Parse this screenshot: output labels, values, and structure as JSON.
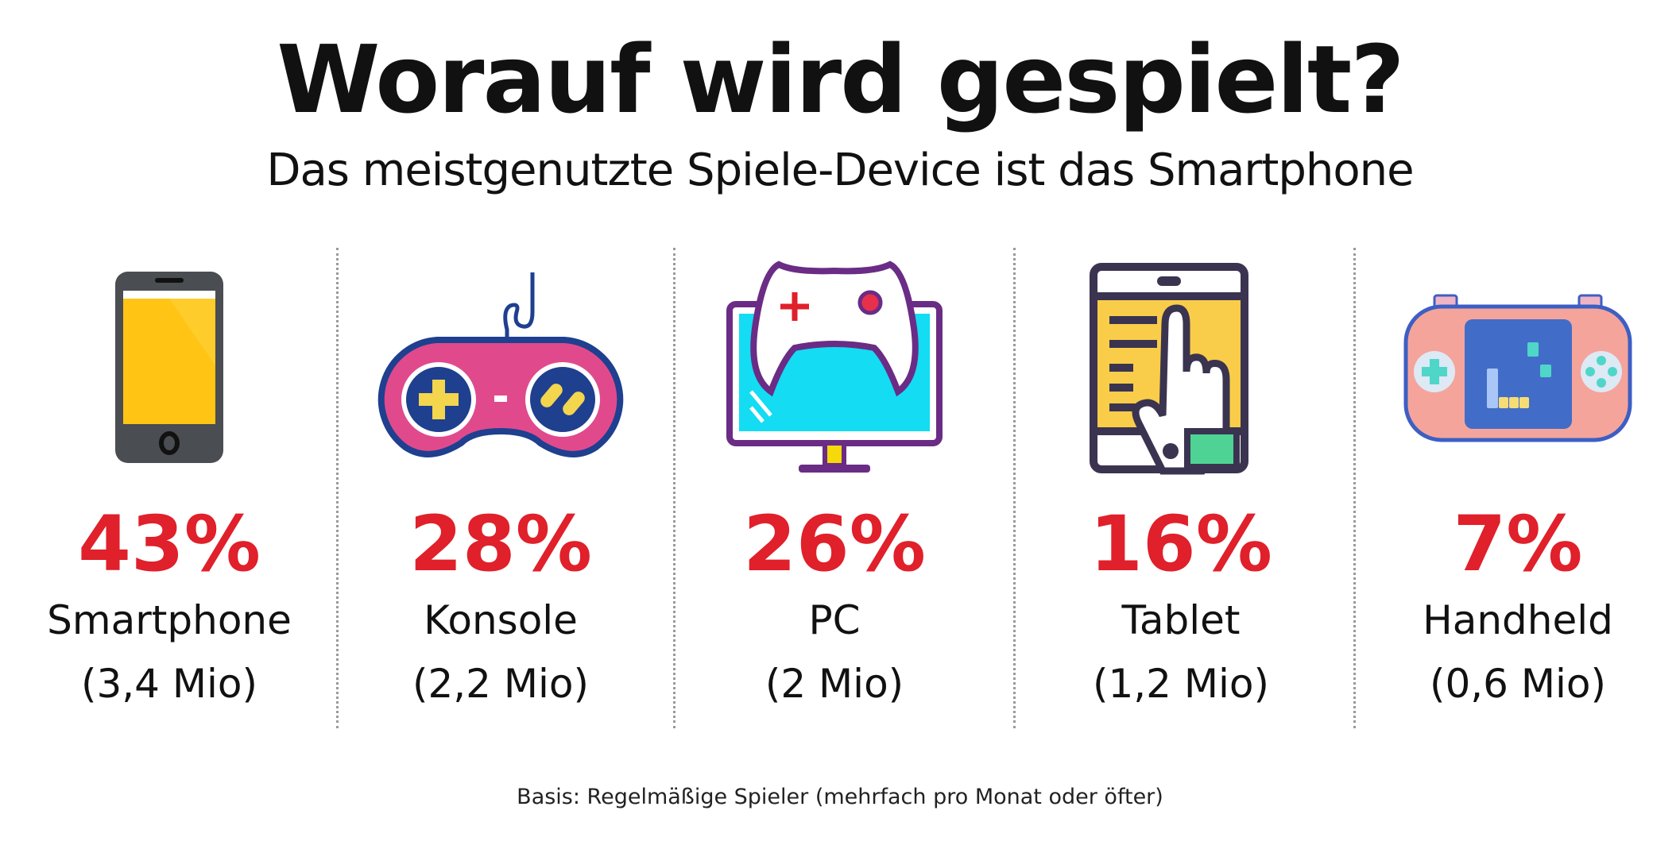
{
  "title": "Worauf wird gespielt?",
  "subtitle": "Das meistgenutzte Spiele-Device ist das Smartphone",
  "footer": "Basis: Regelmäßige Spieler (mehrfach pro Monat oder öfter)",
  "colors": {
    "accent": "#e0202a"
  },
  "items": [
    {
      "percent": "43%",
      "label": "Smartphone",
      "sub": "(3,4 Mio)",
      "icon": "smartphone-icon"
    },
    {
      "percent": "28%",
      "label": "Konsole",
      "sub": "(2,2 Mio)",
      "icon": "gamepad-icon"
    },
    {
      "percent": "26%",
      "label": "PC",
      "sub": "(2 Mio)",
      "icon": "pc-monitor-icon"
    },
    {
      "percent": "16%",
      "label": "Tablet",
      "sub": "(1,2 Mio)",
      "icon": "tablet-hand-icon"
    },
    {
      "percent": "7%",
      "label": "Handheld",
      "sub": "(0,6 Mio)",
      "icon": "handheld-console-icon"
    }
  ],
  "chart_data": {
    "type": "table",
    "title": "Worauf wird gespielt?",
    "subtitle": "Das meistgenutzte Spiele-Device ist das Smartphone",
    "categories": [
      "Smartphone",
      "Konsole",
      "PC",
      "Tablet",
      "Handheld"
    ],
    "values": [
      43,
      28,
      26,
      16,
      7
    ],
    "unit": "%",
    "players_millions": [
      3.4,
      2.2,
      2,
      1.2,
      0.6
    ],
    "note": "Basis: Regelmäßige Spieler (mehrfach pro Monat oder öfter)"
  }
}
